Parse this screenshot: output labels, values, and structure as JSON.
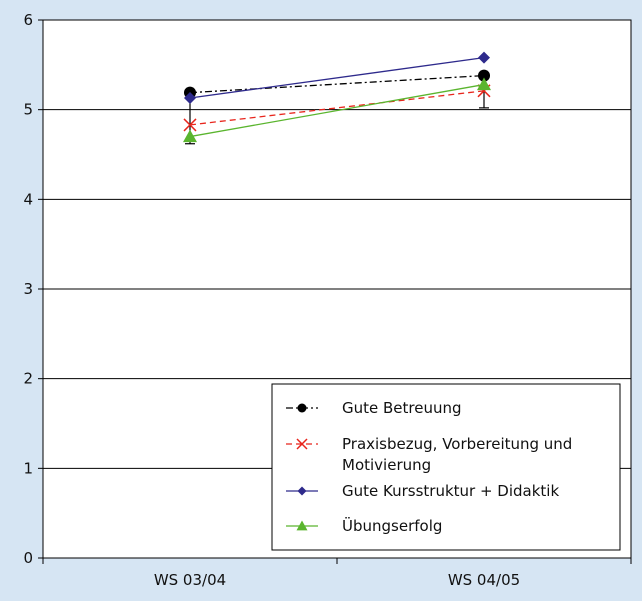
{
  "chart_data": {
    "type": "line",
    "categories": [
      "WS 03/04",
      "WS 04/05"
    ],
    "ylim": [
      0,
      6
    ],
    "yticks": [
      0,
      1,
      2,
      3,
      4,
      5,
      6
    ],
    "grid": true,
    "legend_position": "bottom-right",
    "series": [
      {
        "name": "Gute Betreuung",
        "values": [
          5.19,
          5.38
        ],
        "color": "#000000",
        "marker": "circle",
        "dash": "dashdot"
      },
      {
        "name": "Praxisbezug, Vorbereitung  und Motivierung",
        "legend_lines": [
          "Praxisbezug, Vorbereitung  und",
          "Motivierung"
        ],
        "values": [
          4.83,
          5.21
        ],
        "color": "#e8251c",
        "marker": "x",
        "dash": "dashed"
      },
      {
        "name": "Gute Kursstruktur + Didaktik",
        "values": [
          5.13,
          5.58
        ],
        "color": "#2e2a8c",
        "marker": "diamond",
        "dash": "solid"
      },
      {
        "name": "Übungserfolg",
        "values": [
          4.7,
          5.28
        ],
        "color": "#5ab52e",
        "marker": "triangle",
        "dash": "solid"
      }
    ],
    "error_bars": [
      {
        "category": "WS 03/04",
        "low": 4.62,
        "high": 5.19
      },
      {
        "category": "WS 04/05",
        "low": 5.02,
        "high": 5.38
      }
    ]
  }
}
